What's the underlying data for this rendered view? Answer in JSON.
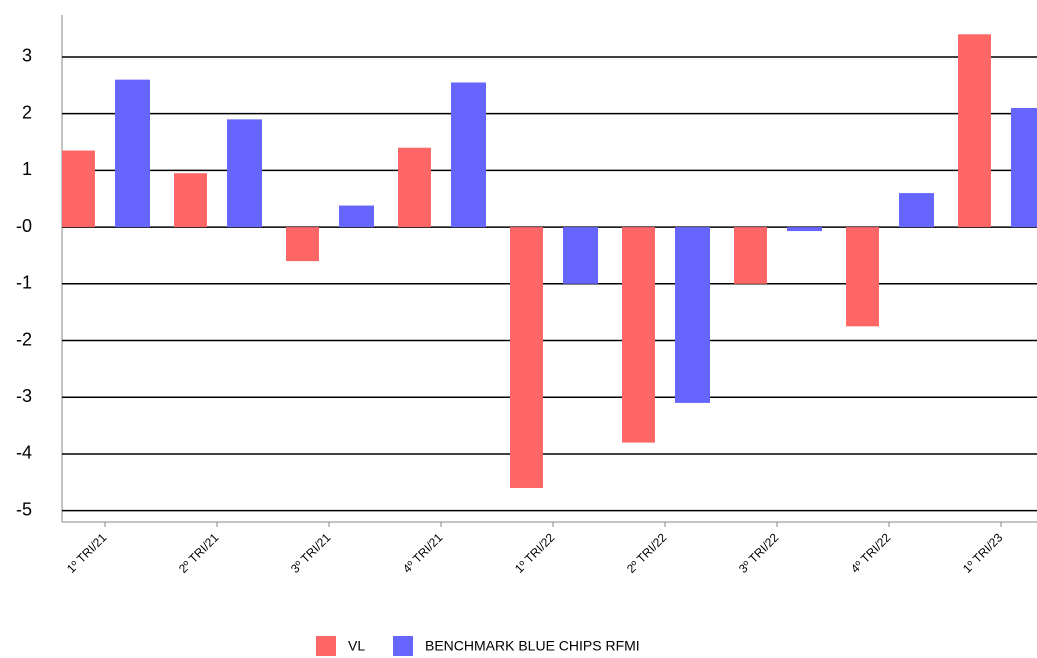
{
  "chart_data": {
    "type": "bar",
    "categories": [
      "1º TRI/21",
      "2º TRI/21",
      "3º TRI/21",
      "4º TRI/21",
      "1º TRI/22",
      "2º TRI/22",
      "3º TRI/22",
      "4º TRI/22",
      "1º TRI/23"
    ],
    "series": [
      {
        "name": "VL",
        "color": "#ff6666",
        "values": [
          1.35,
          0.95,
          -0.6,
          1.4,
          -4.6,
          -3.8,
          -1.0,
          -1.75,
          3.4
        ]
      },
      {
        "name": "BENCHMARK BLUE CHIPS RFMI",
        "color": "#6666ff",
        "values": [
          2.6,
          1.9,
          0.38,
          2.55,
          -1.0,
          -3.1,
          -0.07,
          0.6,
          2.1
        ]
      }
    ],
    "ylim": [
      -5.2,
      3.74
    ],
    "yticks": [
      3,
      2,
      1,
      {
        "value": 0,
        "label": "-0"
      },
      -1,
      -2,
      -3,
      -4,
      -5
    ],
    "grid": true,
    "legend": "bottom"
  }
}
